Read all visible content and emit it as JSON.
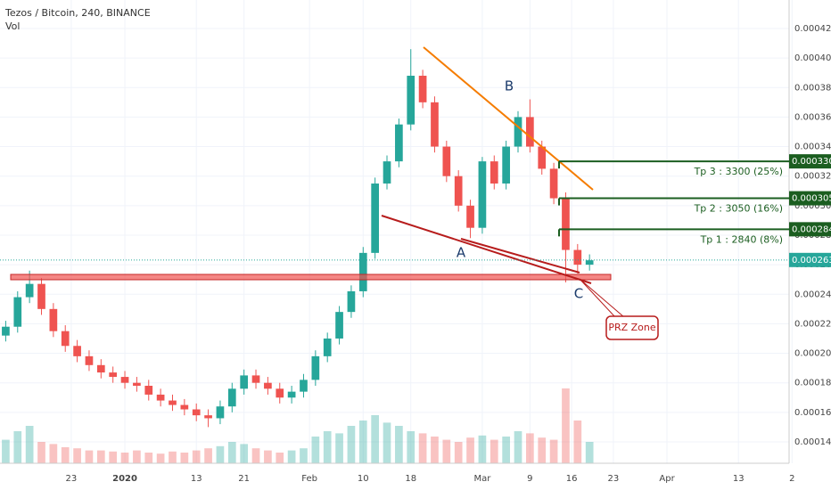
{
  "header": {
    "title": "Tezos / Bitcoin, 240, BINANCE",
    "indicator": "Vol"
  },
  "chart_data": {
    "type": "candlestick",
    "x": [
      -20,
      -18,
      -16,
      -14,
      -12,
      -10,
      -8,
      -6,
      -4,
      -2,
      0,
      2,
      4,
      6,
      8,
      10,
      12,
      14,
      16,
      18,
      20,
      22,
      24,
      26,
      28,
      30,
      32,
      34,
      36,
      38,
      40,
      42,
      44,
      46,
      48,
      50,
      52,
      54,
      56,
      58,
      60,
      62,
      64,
      66,
      68,
      70,
      72,
      74,
      76,
      78
    ],
    "open": [
      0.000212,
      0.000218,
      0.000238,
      0.000247,
      0.00023,
      0.000215,
      0.000205,
      0.000198,
      0.000192,
      0.000187,
      0.000184,
      0.00018,
      0.000178,
      0.000172,
      0.000168,
      0.000165,
      0.000162,
      0.000158,
      0.000156,
      0.000164,
      0.000176,
      0.000185,
      0.00018,
      0.000176,
      0.00017,
      0.000174,
      0.000182,
      0.000198,
      0.00021,
      0.000228,
      0.000242,
      0.000268,
      0.000315,
      0.00033,
      0.000355,
      0.000388,
      0.00037,
      0.00034,
      0.00032,
      0.0003,
      0.000285,
      0.00033,
      0.000315,
      0.00034,
      0.00036,
      0.00034,
      0.000325,
      0.000305,
      0.00027,
      0.00026
    ],
    "high": [
      0.000222,
      0.000242,
      0.000256,
      0.000251,
      0.000234,
      0.000219,
      0.000209,
      0.000202,
      0.000196,
      0.000191,
      0.000188,
      0.000184,
      0.000182,
      0.000176,
      0.000172,
      0.000169,
      0.000166,
      0.000162,
      0.000168,
      0.00018,
      0.000189,
      0.000189,
      0.000184,
      0.00018,
      0.000178,
      0.000186,
      0.000202,
      0.000214,
      0.000232,
      0.000246,
      0.000272,
      0.000319,
      0.000334,
      0.000359,
      0.000406,
      0.000392,
      0.000374,
      0.000344,
      0.000324,
      0.000304,
      0.000333,
      0.000334,
      0.000344,
      0.000364,
      0.000372,
      0.000344,
      0.000329,
      0.000309,
      0.000274,
      0.000267
    ],
    "low": [
      0.000208,
      0.000214,
      0.000234,
      0.000226,
      0.000211,
      0.000201,
      0.000194,
      0.000188,
      0.000183,
      0.00018,
      0.000176,
      0.000174,
      0.000168,
      0.000164,
      0.000161,
      0.000158,
      0.000154,
      0.00015,
      0.000152,
      0.00016,
      0.000172,
      0.000176,
      0.000172,
      0.000166,
      0.000166,
      0.00017,
      0.000178,
      0.000194,
      0.000206,
      0.000224,
      0.000238,
      0.000264,
      0.000311,
      0.000326,
      0.000351,
      0.000366,
      0.000336,
      0.000316,
      0.000296,
      0.000278,
      0.000281,
      0.000311,
      0.000311,
      0.000336,
      0.000336,
      0.000321,
      0.000301,
      0.000248,
      0.000254,
      0.000256
    ],
    "close": [
      0.000218,
      0.000238,
      0.000247,
      0.00023,
      0.000215,
      0.000205,
      0.000198,
      0.000192,
      0.000187,
      0.000184,
      0.00018,
      0.000178,
      0.000172,
      0.000168,
      0.000165,
      0.000162,
      0.000158,
      0.000156,
      0.000164,
      0.000176,
      0.000185,
      0.00018,
      0.000176,
      0.00017,
      0.000174,
      0.000182,
      0.000198,
      0.00021,
      0.000228,
      0.000242,
      0.000268,
      0.000315,
      0.00033,
      0.000355,
      0.000388,
      0.00037,
      0.00034,
      0.00032,
      0.0003,
      0.000285,
      0.00033,
      0.000315,
      0.00034,
      0.00036,
      0.00034,
      0.000325,
      0.000305,
      0.00027,
      0.00026,
      0.000263
    ],
    "volume": [
      22,
      30,
      35,
      20,
      18,
      15,
      14,
      12,
      12,
      11,
      10,
      12,
      10,
      9,
      11,
      10,
      12,
      14,
      16,
      20,
      18,
      14,
      12,
      10,
      12,
      14,
      25,
      30,
      28,
      35,
      40,
      45,
      38,
      35,
      30,
      28,
      25,
      22,
      20,
      24,
      26,
      22,
      25,
      30,
      28,
      24,
      22,
      70,
      40,
      20
    ],
    "volume_lim": [
      0,
      100
    ],
    "up_color": "#26a69a",
    "down_color": "#ef5350",
    "xlim": [
      -20.96,
      111.5
    ],
    "xticks": [
      {
        "value": -9,
        "label": "23"
      },
      {
        "value": 0,
        "label": "2020"
      },
      {
        "value": 12,
        "label": "13"
      },
      {
        "value": 20,
        "label": "21"
      },
      {
        "value": 31,
        "label": "Feb"
      },
      {
        "value": 40,
        "label": "10"
      },
      {
        "value": 48,
        "label": "18"
      },
      {
        "value": 60,
        "label": "Mar"
      },
      {
        "value": 68,
        "label": "9"
      },
      {
        "value": 75,
        "label": "16"
      },
      {
        "value": 82,
        "label": "23"
      },
      {
        "value": 91,
        "label": "Apr"
      },
      {
        "value": 103,
        "label": "13"
      },
      {
        "value": 112,
        "label": "2"
      }
    ],
    "ylim": [
      0.0001255,
      0.0004393
    ],
    "yticks": [
      {
        "value": 0.00014,
        "label": "0.0001400"
      },
      {
        "value": 0.00016,
        "label": "0.0001600"
      },
      {
        "value": 0.00018,
        "label": "0.0001800"
      },
      {
        "value": 0.0002,
        "label": "0.0002000"
      },
      {
        "value": 0.00022,
        "label": "0.0002200"
      },
      {
        "value": 0.00024,
        "label": "0.0002400"
      },
      {
        "value": 0.00026,
        "label": "0.0002600"
      },
      {
        "value": 0.00028,
        "label": "0.0002800"
      },
      {
        "value": 0.0003,
        "label": "0.0003000"
      },
      {
        "value": 0.00032,
        "label": "0.0003200"
      },
      {
        "value": 0.00034,
        "label": "0.0003400"
      },
      {
        "value": 0.00036,
        "label": "0.0003600"
      },
      {
        "value": 0.00038,
        "label": "0.0003800"
      },
      {
        "value": 0.0004,
        "label": "0.0004000"
      },
      {
        "value": 0.00042,
        "label": "0.0004200"
      }
    ],
    "targets": [
      {
        "value": 0.00033,
        "label": "0.0003300",
        "text": "Tp 3 : 3300 (25%)"
      },
      {
        "value": 0.000305,
        "label": "0.0003050",
        "text": "Tp 2 : 3050 (16%)"
      },
      {
        "value": 0.000284,
        "label": "0.0002840",
        "text": "Tp 1 : 2840 (8%)"
      }
    ],
    "target_color": "#1b5e20",
    "last_price": {
      "value": 0.0002632,
      "label": "0.0002632",
      "color": "#26a69a"
    },
    "annotations": [
      "A",
      "B",
      "C",
      "PRZ Zone"
    ]
  }
}
